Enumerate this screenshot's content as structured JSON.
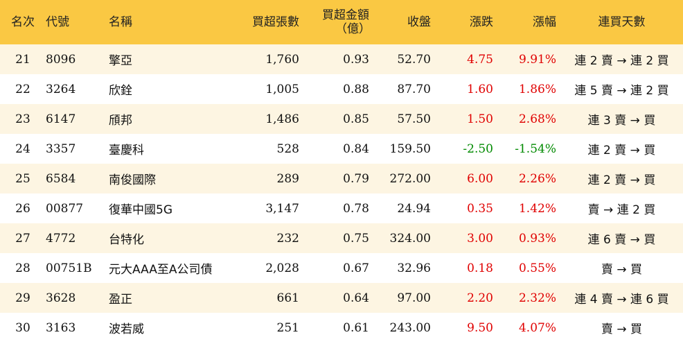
{
  "headers": {
    "rank": "名次",
    "code": "代號",
    "name": "名稱",
    "net_lots": "買超張數",
    "net_amount_line1": "買超金額",
    "net_amount_line2": "（億）",
    "close": "收盤",
    "change": "漲跌",
    "change_pct": "漲幅",
    "streak": "連買天數"
  },
  "rows": [
    {
      "rank": "21",
      "code": "8096",
      "name": "擎亞",
      "net_lots": "1,760",
      "net_amount": "0.93",
      "close": "52.70",
      "change": "4.75",
      "change_pct": "9.91%",
      "direction": "up",
      "streak": "連 2 賣 → 連 2 買"
    },
    {
      "rank": "22",
      "code": "3264",
      "name": "欣銓",
      "net_lots": "1,005",
      "net_amount": "0.88",
      "close": "87.70",
      "change": "1.60",
      "change_pct": "1.86%",
      "direction": "up",
      "streak": "連 5 賣 → 連 2 買"
    },
    {
      "rank": "23",
      "code": "6147",
      "name": "頎邦",
      "net_lots": "1,486",
      "net_amount": "0.85",
      "close": "57.50",
      "change": "1.50",
      "change_pct": "2.68%",
      "direction": "up",
      "streak": "連 3 賣 → 買"
    },
    {
      "rank": "24",
      "code": "3357",
      "name": "臺慶科",
      "net_lots": "528",
      "net_amount": "0.84",
      "close": "159.50",
      "change": "-2.50",
      "change_pct": "-1.54%",
      "direction": "down",
      "streak": "連 2 賣 → 買"
    },
    {
      "rank": "25",
      "code": "6584",
      "name": "南俊國際",
      "net_lots": "289",
      "net_amount": "0.79",
      "close": "272.00",
      "change": "6.00",
      "change_pct": "2.26%",
      "direction": "up",
      "streak": "連 2 賣 → 買"
    },
    {
      "rank": "26",
      "code": "00877",
      "name": "復華中國5G",
      "net_lots": "3,147",
      "net_amount": "0.78",
      "close": "24.94",
      "change": "0.35",
      "change_pct": "1.42%",
      "direction": "up",
      "streak": "賣 → 連 2 買"
    },
    {
      "rank": "27",
      "code": "4772",
      "name": "台特化",
      "net_lots": "232",
      "net_amount": "0.75",
      "close": "324.00",
      "change": "3.00",
      "change_pct": "0.93%",
      "direction": "up",
      "streak": "連 6 賣 → 買"
    },
    {
      "rank": "28",
      "code": "00751B",
      "name": "元大AAA至A公司債",
      "net_lots": "2,028",
      "net_amount": "0.67",
      "close": "32.96",
      "change": "0.18",
      "change_pct": "0.55%",
      "direction": "up",
      "streak": "賣 → 買"
    },
    {
      "rank": "29",
      "code": "3628",
      "name": "盈正",
      "net_lots": "661",
      "net_amount": "0.64",
      "close": "97.00",
      "change": "2.20",
      "change_pct": "2.32%",
      "direction": "up",
      "streak": "連 4 賣 → 連 6 買"
    },
    {
      "rank": "30",
      "code": "3163",
      "name": "波若威",
      "net_lots": "251",
      "net_amount": "0.61",
      "close": "243.00",
      "change": "9.50",
      "change_pct": "4.07%",
      "direction": "up",
      "streak": "賣 → 買"
    }
  ],
  "colors": {
    "header_bg": "#fac843",
    "odd_row_bg": "#fdf5e2",
    "up": "#e00000",
    "down": "#008a00"
  }
}
